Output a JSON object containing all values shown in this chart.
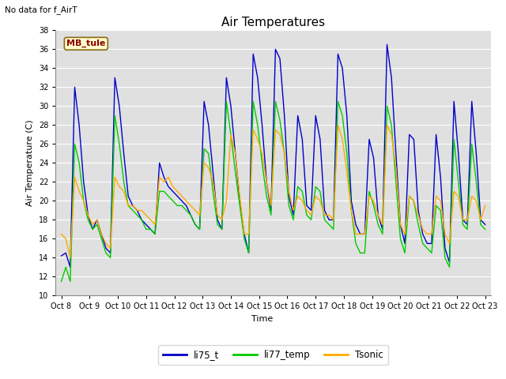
{
  "title": "Air Temperatures",
  "no_data_text": "No data for f_AirT",
  "mb_tule_label": "MB_tule",
  "ylabel": "Air Temperature (C)",
  "xlabel": "Time",
  "ylim": [
    10,
    38
  ],
  "yticks": [
    10,
    12,
    14,
    16,
    18,
    20,
    22,
    24,
    26,
    28,
    30,
    32,
    34,
    36,
    38
  ],
  "x_labels": [
    "Oct 8",
    "Oct 9",
    "Oct 10",
    "Oct 11",
    "Oct 12",
    "Oct 13",
    "Oct 14",
    "Oct 15",
    "Oct 16",
    "Oct 17",
    "Oct 18",
    "Oct 19",
    "Oct 20",
    "Oct 21",
    "Oct 22",
    "Oct 23"
  ],
  "line_colors": {
    "li75_t": "#0000cc",
    "li77_temp": "#00cc00",
    "Tsonic": "#ffaa00"
  },
  "legend_labels": [
    "li75_t",
    "li77_temp",
    "Tsonic"
  ],
  "bg_color": "#e0e0e0",
  "fig_bg": "#ffffff",
  "title_fontsize": 11,
  "label_fontsize": 8,
  "tick_fontsize": 7,
  "grid_color": "#ffffff",
  "li75_t": [
    14.2,
    14.5,
    13.0,
    32.0,
    28.0,
    22.0,
    18.5,
    17.0,
    18.0,
    16.5,
    15.0,
    14.5,
    33.0,
    30.0,
    25.0,
    20.5,
    19.5,
    19.0,
    18.0,
    17.5,
    17.0,
    16.5,
    24.0,
    22.5,
    21.5,
    21.0,
    20.5,
    20.0,
    19.5,
    18.5,
    17.5,
    17.0,
    30.5,
    28.0,
    23.0,
    18.0,
    17.0,
    33.0,
    30.0,
    25.0,
    20.0,
    16.5,
    14.5,
    35.5,
    33.0,
    28.0,
    22.0,
    19.0,
    36.0,
    35.0,
    29.0,
    20.5,
    18.5,
    29.0,
    26.5,
    19.5,
    19.0,
    29.0,
    26.5,
    19.0,
    18.0,
    18.0,
    35.5,
    34.0,
    29.0,
    20.0,
    17.5,
    16.5,
    16.5,
    26.5,
    24.5,
    18.5,
    17.0,
    36.5,
    33.0,
    25.0,
    17.5,
    15.5,
    27.0,
    26.5,
    19.0,
    16.5,
    15.5,
    15.5,
    27.0,
    22.5,
    15.0,
    13.5,
    30.5,
    25.0,
    18.0,
    17.5,
    30.5,
    25.0,
    18.0,
    17.5
  ],
  "li77_temp": [
    11.5,
    13.0,
    11.5,
    26.0,
    24.0,
    20.0,
    18.0,
    17.0,
    17.5,
    16.0,
    14.5,
    14.0,
    29.0,
    26.0,
    22.0,
    19.5,
    19.0,
    18.5,
    18.0,
    17.0,
    17.0,
    16.5,
    21.0,
    21.0,
    20.5,
    20.0,
    19.5,
    19.5,
    19.0,
    18.5,
    17.5,
    17.0,
    25.5,
    25.0,
    21.0,
    17.5,
    17.0,
    30.5,
    27.0,
    23.0,
    19.5,
    16.0,
    14.5,
    30.5,
    28.0,
    24.0,
    20.5,
    18.5,
    30.5,
    28.5,
    25.0,
    19.5,
    18.0,
    21.5,
    21.0,
    18.5,
    18.0,
    21.5,
    21.0,
    18.0,
    17.5,
    17.0,
    30.5,
    29.0,
    25.0,
    19.0,
    15.5,
    14.5,
    14.5,
    21.0,
    19.5,
    17.5,
    16.5,
    30.0,
    28.0,
    22.0,
    16.0,
    14.5,
    20.5,
    20.0,
    17.5,
    15.5,
    15.0,
    14.5,
    19.5,
    19.0,
    14.0,
    13.0,
    26.5,
    22.0,
    17.5,
    17.0,
    26.0,
    22.0,
    17.5,
    17.0
  ],
  "Tsonic": [
    16.5,
    16.0,
    14.0,
    22.5,
    21.0,
    20.0,
    18.5,
    17.5,
    18.0,
    16.5,
    15.5,
    15.0,
    22.5,
    21.5,
    21.0,
    19.5,
    19.5,
    19.0,
    19.0,
    18.5,
    18.0,
    17.5,
    22.5,
    22.0,
    22.5,
    21.5,
    21.0,
    20.5,
    20.0,
    19.5,
    19.0,
    18.5,
    24.0,
    23.5,
    22.0,
    18.5,
    18.0,
    20.0,
    27.0,
    25.0,
    20.5,
    16.5,
    16.5,
    27.5,
    26.5,
    25.0,
    22.0,
    19.5,
    27.5,
    27.0,
    25.0,
    21.0,
    19.0,
    20.5,
    20.0,
    19.0,
    18.5,
    20.5,
    20.0,
    18.5,
    18.5,
    18.0,
    28.0,
    26.5,
    23.0,
    19.0,
    16.5,
    16.5,
    16.5,
    20.5,
    20.0,
    18.5,
    17.5,
    28.0,
    27.0,
    23.5,
    17.5,
    16.5,
    20.5,
    20.0,
    18.5,
    17.0,
    16.5,
    16.5,
    20.5,
    20.0,
    16.5,
    15.5,
    21.0,
    20.5,
    18.0,
    18.0,
    20.5,
    20.0,
    18.0,
    19.5
  ]
}
